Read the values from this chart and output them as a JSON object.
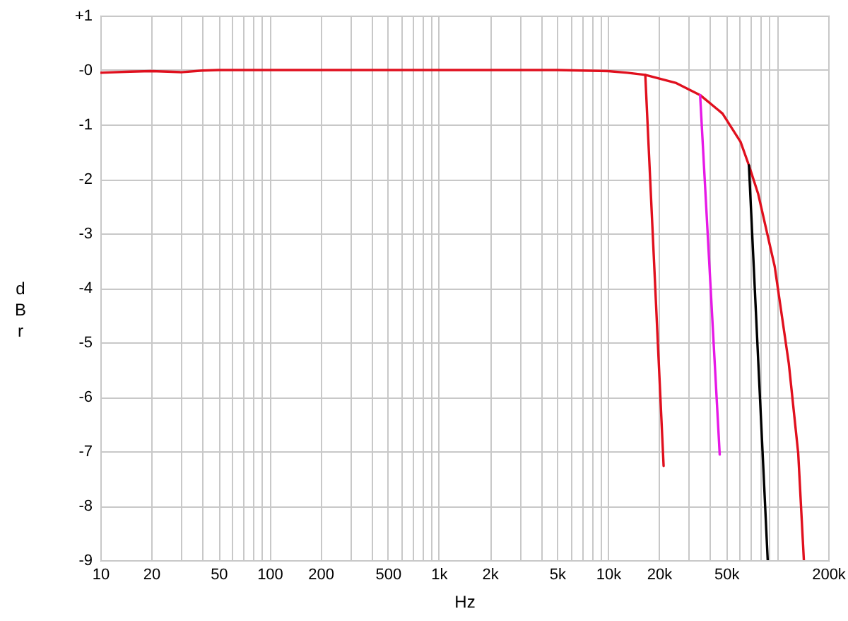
{
  "chart_data": {
    "type": "line",
    "xlabel": "Hz",
    "ylabel": "dBr",
    "log": "x",
    "grid": true,
    "xlim": [
      10,
      200000
    ],
    "ylim": [
      -9,
      1
    ],
    "xticks": [
      10,
      20,
      {
        "value": 30,
        "label": null
      },
      {
        "value": 40,
        "label": null
      },
      50,
      {
        "value": 60,
        "label": null
      },
      {
        "value": 70,
        "label": null
      },
      {
        "value": 80,
        "label": null
      },
      {
        "value": 90,
        "label": null
      },
      100,
      200,
      {
        "value": 300,
        "label": null
      },
      {
        "value": 400,
        "label": null
      },
      500,
      {
        "value": 600,
        "label": null
      },
      {
        "value": 700,
        "label": null
      },
      {
        "value": 800,
        "label": null
      },
      {
        "value": 900,
        "label": null
      },
      {
        "value": 1000,
        "label": "1k"
      },
      {
        "value": 2000,
        "label": "2k"
      },
      {
        "value": 3000,
        "label": null
      },
      {
        "value": 4000,
        "label": null
      },
      {
        "value": 5000,
        "label": "5k"
      },
      {
        "value": 6000,
        "label": null
      },
      {
        "value": 7000,
        "label": null
      },
      {
        "value": 8000,
        "label": null
      },
      {
        "value": 9000,
        "label": null
      },
      {
        "value": 10000,
        "label": "10k"
      },
      {
        "value": 20000,
        "label": "20k"
      },
      {
        "value": 30000,
        "label": null
      },
      {
        "value": 40000,
        "label": null
      },
      {
        "value": 50000,
        "label": "50k"
      },
      {
        "value": 60000,
        "label": null
      },
      {
        "value": 70000,
        "label": null
      },
      {
        "value": 80000,
        "label": null
      },
      {
        "value": 90000,
        "label": null
      },
      {
        "value": 100000,
        "label": null
      },
      {
        "value": 200000,
        "label": "200k"
      }
    ],
    "yticks": [
      {
        "value": 1,
        "label": "+1"
      },
      {
        "value": 0,
        "label": "-0"
      },
      -1,
      -2,
      -3,
      -4,
      -5,
      -6,
      -7,
      -8,
      -9
    ],
    "series": [
      {
        "color": "#e0101e",
        "x": [
          10,
          15,
          20,
          25,
          30,
          40,
          50,
          100,
          1000,
          5000,
          10000,
          13000,
          16600,
          25300,
          35000,
          47500,
          60700,
          68000,
          77200,
          96600,
          117000,
          133000,
          143600
        ],
        "values": [
          -0.05,
          -0.03,
          -0.02,
          -0.03,
          -0.04,
          -0.01,
          0,
          0,
          0,
          0,
          -0.02,
          -0.05,
          -0.09,
          -0.24,
          -0.46,
          -0.8,
          -1.32,
          -1.75,
          -2.28,
          -3.61,
          -5.39,
          -7.04,
          -9
        ]
      },
      {
        "color": "#e0101e",
        "x": [
          16600,
          21300
        ],
        "values": [
          -0.09,
          -7.27
        ]
      },
      {
        "color": "#e619e6",
        "x": [
          35000,
          45700
        ],
        "values": [
          -0.46,
          -7.06
        ]
      },
      {
        "color": "#000000",
        "x": [
          68000,
          87800
        ],
        "values": [
          -1.75,
          -9
        ]
      }
    ]
  }
}
